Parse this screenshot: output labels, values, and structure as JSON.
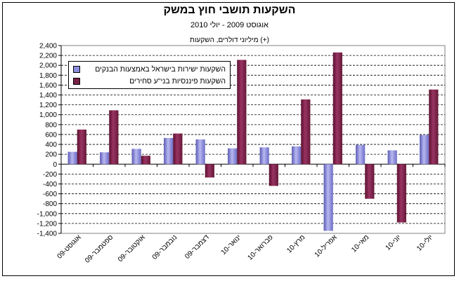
{
  "chart_data": {
    "type": "bar",
    "title": "השקעות תושבי חוץ במשק",
    "subtitle": "אוגוסט 2009 - יולי 2010",
    "units": "מיליוני דולרים, השקעות (+)",
    "categories": [
      "אוגוסט-09",
      "ספטמבר-09",
      "אוקטובר-09",
      "נובמבר-09",
      "דצמבר-09",
      "ינואר-10",
      "פברואר-10",
      "מרץ-10",
      "אפריל-10",
      "מאי-10",
      "יוני-10",
      "יולי-10"
    ],
    "series": [
      {
        "name": "השקעות ישירות בישראל באמצעות הבנקים",
        "color": "#8c8cdc",
        "values": [
          250,
          240,
          310,
          530,
          500,
          320,
          340,
          360,
          -1350,
          390,
          280,
          590
        ]
      },
      {
        "name": "השקעות פיננסיות בני\"ע סחירים",
        "color": "#7a1f45",
        "values": [
          700,
          1090,
          170,
          620,
          -270,
          2110,
          -440,
          1310,
          2260,
          -700,
          -1180,
          1510
        ]
      }
    ],
    "ylim": [
      -1400,
      2400
    ],
    "yticks": [
      -1400,
      -1200,
      -1000,
      -800,
      -600,
      -400,
      -200,
      0,
      200,
      400,
      600,
      800,
      1000,
      1200,
      1400,
      1600,
      1800,
      2000,
      2200,
      2400
    ],
    "grid": true,
    "legend_position": "top-left"
  }
}
